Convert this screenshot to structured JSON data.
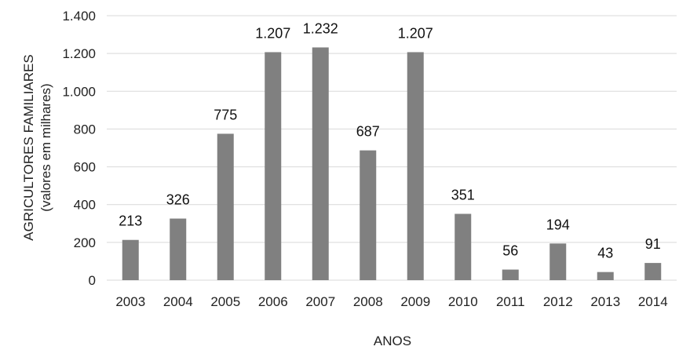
{
  "chart_data": {
    "type": "bar",
    "categories": [
      "2003",
      "2004",
      "2005",
      "2006",
      "2007",
      "2008",
      "2009",
      "2010",
      "2011",
      "2012",
      "2013",
      "2014"
    ],
    "values": [
      213,
      326,
      775,
      1207,
      1232,
      687,
      1207,
      351,
      56,
      194,
      43,
      91
    ],
    "value_labels": [
      "213",
      "326",
      "775",
      "1.207",
      "1.232",
      "687",
      "1.207",
      "351",
      "56",
      "194",
      "43",
      "91"
    ],
    "ylim": [
      0,
      1400
    ],
    "yticks": [
      0,
      200,
      400,
      600,
      800,
      1000,
      1200,
      1400
    ],
    "ytick_labels": [
      "0",
      "200",
      "400",
      "600",
      "800",
      "1.000",
      "1.200",
      "1.400"
    ],
    "xlabel": "ANOS",
    "ylabel_line1": "AGRICULTORES FAMILIARES",
    "ylabel_line2": "(valores em milhares)",
    "grid": true,
    "legend": "none",
    "bar_color": "#808080",
    "grid_color": "#d9d9d9"
  }
}
